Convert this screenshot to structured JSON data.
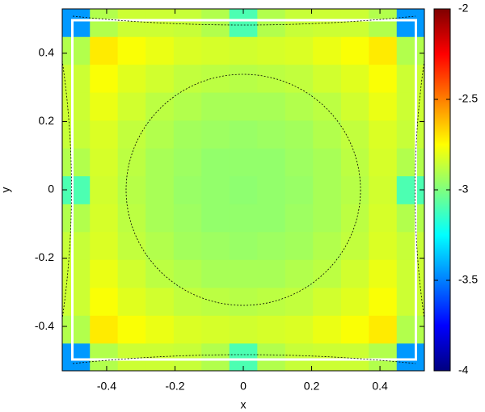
{
  "chart_data": {
    "type": "heatmap",
    "xlabel": "x",
    "ylabel": "y",
    "x": [
      -0.49,
      -0.408,
      -0.327,
      -0.245,
      -0.163,
      -0.082,
      0,
      0.082,
      0.163,
      0.245,
      0.327,
      0.408,
      0.49
    ],
    "y": [
      -0.49,
      -0.408,
      -0.327,
      -0.245,
      -0.163,
      -0.082,
      0,
      0.082,
      0.163,
      0.245,
      0.327,
      0.408,
      0.49
    ],
    "z": [
      [
        -3.45,
        -2.9,
        -2.85,
        -2.85,
        -2.86,
        -2.9,
        -3.1,
        -2.9,
        -2.86,
        -2.85,
        -2.85,
        -2.9,
        -3.45
      ],
      [
        -2.9,
        -2.71,
        -2.76,
        -2.79,
        -2.82,
        -2.83,
        -2.84,
        -2.83,
        -2.82,
        -2.79,
        -2.76,
        -2.71,
        -2.9
      ],
      [
        -2.85,
        -2.76,
        -2.81,
        -2.84,
        -2.87,
        -2.88,
        -2.89,
        -2.88,
        -2.87,
        -2.84,
        -2.81,
        -2.76,
        -2.85
      ],
      [
        -2.85,
        -2.79,
        -2.84,
        -2.88,
        -2.9,
        -2.92,
        -2.92,
        -2.92,
        -2.9,
        -2.88,
        -2.84,
        -2.79,
        -2.85
      ],
      [
        -2.86,
        -2.82,
        -2.87,
        -2.9,
        -2.93,
        -2.94,
        -2.95,
        -2.94,
        -2.93,
        -2.9,
        -2.87,
        -2.82,
        -2.86
      ],
      [
        -2.9,
        -2.83,
        -2.88,
        -2.92,
        -2.94,
        -2.96,
        -2.96,
        -2.96,
        -2.94,
        -2.92,
        -2.88,
        -2.83,
        -2.9
      ],
      [
        -3.1,
        -2.84,
        -2.89,
        -2.92,
        -2.95,
        -2.96,
        -2.97,
        -2.96,
        -2.95,
        -2.92,
        -2.89,
        -2.84,
        -3.1
      ],
      [
        -2.9,
        -2.83,
        -2.88,
        -2.92,
        -2.94,
        -2.96,
        -2.96,
        -2.96,
        -2.94,
        -2.92,
        -2.88,
        -2.83,
        -2.9
      ],
      [
        -2.86,
        -2.82,
        -2.87,
        -2.9,
        -2.93,
        -2.94,
        -2.95,
        -2.94,
        -2.93,
        -2.9,
        -2.87,
        -2.82,
        -2.86
      ],
      [
        -2.85,
        -2.79,
        -2.84,
        -2.88,
        -2.9,
        -2.92,
        -2.92,
        -2.92,
        -2.9,
        -2.88,
        -2.84,
        -2.79,
        -2.85
      ],
      [
        -2.85,
        -2.76,
        -2.81,
        -2.84,
        -2.87,
        -2.88,
        -2.89,
        -2.88,
        -2.87,
        -2.84,
        -2.81,
        -2.76,
        -2.85
      ],
      [
        -2.9,
        -2.71,
        -2.76,
        -2.79,
        -2.82,
        -2.83,
        -2.84,
        -2.83,
        -2.82,
        -2.79,
        -2.76,
        -2.71,
        -2.9
      ],
      [
        -3.45,
        -2.9,
        -2.85,
        -2.85,
        -2.86,
        -2.9,
        -3.1,
        -2.9,
        -2.86,
        -2.85,
        -2.85,
        -2.9,
        -3.45
      ]
    ],
    "xlim": [
      -0.53,
      0.53
    ],
    "ylim": [
      -0.53,
      0.53
    ],
    "xticks": [
      -0.4,
      -0.2,
      0,
      0.2,
      0.4
    ],
    "yticks": [
      -0.4,
      -0.2,
      0,
      0.2,
      0.4
    ],
    "zlim": [
      -4,
      -2
    ],
    "zticks": [
      -4,
      -3.5,
      -3,
      -2.5,
      -2
    ],
    "colormap": [
      "#00007f",
      "#0000ff",
      "#007fff",
      "#00ffff",
      "#7fff7f",
      "#ffff00",
      "#ff7f00",
      "#ff0000",
      "#7f0000"
    ]
  }
}
